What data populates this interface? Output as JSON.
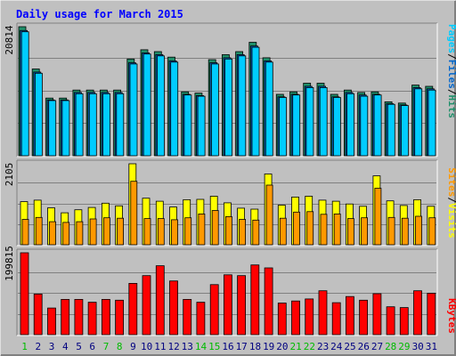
{
  "chart_data": {
    "type": "bar",
    "title": "Daily usage for March 2015",
    "categories": [
      "1",
      "2",
      "3",
      "4",
      "5",
      "6",
      "7",
      "8",
      "9",
      "10",
      "11",
      "12",
      "13",
      "14",
      "15",
      "16",
      "17",
      "18",
      "19",
      "20",
      "21",
      "22",
      "23",
      "24",
      "25",
      "26",
      "27",
      "28",
      "29",
      "30",
      "31"
    ],
    "weekend_days": [
      "1",
      "7",
      "8",
      "14",
      "15",
      "21",
      "22",
      "28",
      "29"
    ],
    "panels": [
      {
        "id": "hits_files_pages",
        "max_label": "20814",
        "ylim": [
          0,
          20814
        ],
        "series": [
          {
            "name": "Hits",
            "color": "#1f8f6a",
            "values": [
              20814,
              14000,
              9300,
              9300,
              10600,
              10600,
              10600,
              10600,
              15600,
              17100,
              16800,
              15900,
              10300,
              10100,
              15500,
              16300,
              16800,
              18300,
              15800,
              9900,
              10300,
              11700,
              11700,
              9900,
              10600,
              10200,
              10300,
              8700,
              8500,
              11400,
              11200
            ]
          },
          {
            "name": "Files",
            "color": "#0066cc",
            "values": [
              20200,
              13500,
              9000,
              9000,
              10200,
              10200,
              10200,
              10200,
              15000,
              16600,
              16300,
              15300,
              9900,
              9700,
              15000,
              15800,
              16300,
              17700,
              15300,
              9500,
              9900,
              11200,
              11200,
              9500,
              10200,
              9800,
              9900,
              8400,
              8200,
              11000,
              10800
            ]
          },
          {
            "name": "Pages",
            "color": "#00ccff",
            "values": [
              20000,
              13300,
              8900,
              8900,
              10000,
              10000,
              10000,
              10000,
              14800,
              16400,
              16100,
              15100,
              9800,
              9600,
              14800,
              15600,
              16100,
              17500,
              15100,
              9400,
              9800,
              11000,
              11000,
              9400,
              10000,
              9600,
              9800,
              8300,
              8100,
              10800,
              10600
            ]
          }
        ]
      },
      {
        "id": "sites_visits",
        "max_label": "2105",
        "ylim": [
          0,
          2105
        ],
        "series": [
          {
            "name": "Visits",
            "color": "#ffff00",
            "values": [
              1120,
              1160,
              960,
              830,
              910,
              970,
              1080,
              1010,
              2105,
              1210,
              1130,
              980,
              1170,
              1180,
              1260,
              1090,
              950,
              925,
              1840,
              1030,
              1240,
              1260,
              1160,
              1130,
              1060,
              1000,
              1790,
              1140,
              1020,
              1170,
              1000
            ]
          },
          {
            "name": "Sites",
            "color": "#ff9900",
            "values": [
              660,
              710,
              600,
              580,
              600,
              670,
              700,
              690,
              1650,
              680,
              680,
              650,
              700,
              800,
              890,
              730,
              660,
              640,
              1550,
              690,
              850,
              860,
              790,
              800,
              680,
              700,
              1470,
              710,
              690,
              740,
              700
            ]
          }
        ]
      },
      {
        "id": "kbytes",
        "max_label": "199815",
        "ylim": [
          0,
          199815
        ],
        "series": [
          {
            "name": "KBytes",
            "color": "#ff0000",
            "values": [
              199815,
              99000,
              65000,
              86000,
              86000,
              79000,
              86000,
              84000,
              125000,
              144000,
              168000,
              131000,
              86000,
              79000,
              122000,
              146000,
              144000,
              170000,
              163000,
              77000,
              82000,
              87000,
              107000,
              78000,
              93000,
              84000,
              100000,
              68000,
              66000,
              107000,
              101000
            ]
          }
        ]
      }
    ],
    "legend": {
      "top": {
        "items": [
          "Pages",
          "Files",
          "Hits"
        ],
        "separator": "/"
      },
      "middle": {
        "items": [
          "Sites",
          "Visits"
        ],
        "separator": "/"
      },
      "bottom": {
        "items": [
          "KBytes"
        ]
      }
    },
    "colors": {
      "background": "#c0c0c0",
      "border": "#000000",
      "title_color": "#0000ff",
      "day_label": "#000080",
      "weekend_label": "#00bb00"
    }
  }
}
